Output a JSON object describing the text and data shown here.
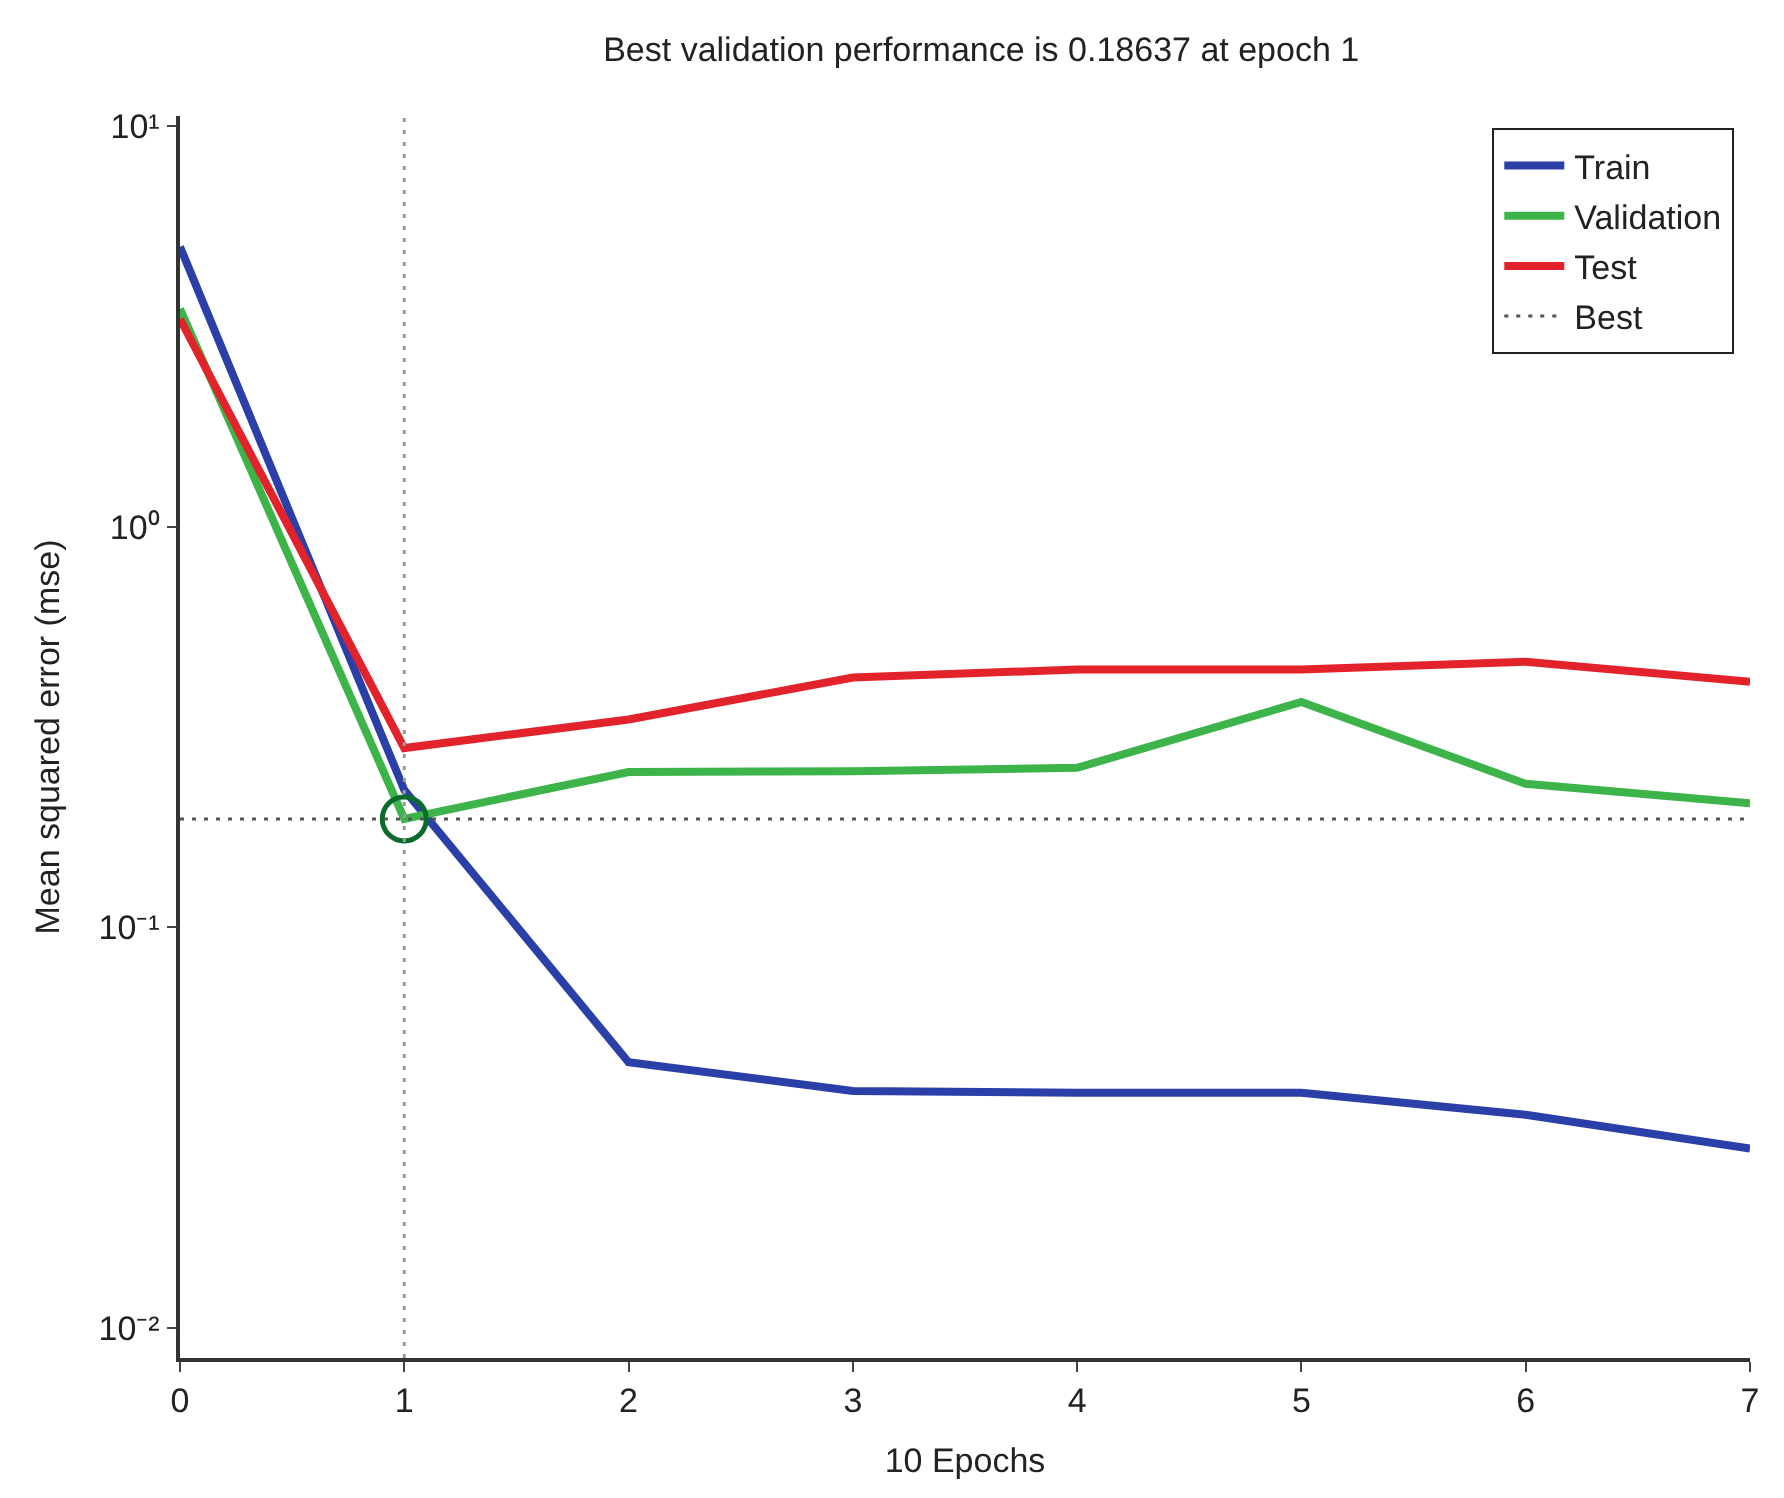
{
  "chart_data": {
    "type": "line",
    "title": "Best validation performance is 0.18637 at epoch 1",
    "xlabel": "10 Epochs",
    "ylabel": "Mean squared error (mse)",
    "x": [
      0,
      1,
      2,
      3,
      4,
      5,
      6,
      7
    ],
    "series": [
      {
        "name": "Train",
        "color": "#2b3fa8",
        "values": [
          5.0,
          0.22,
          0.046,
          0.039,
          0.0386,
          0.0386,
          0.034,
          0.028
        ]
      },
      {
        "name": "Validation",
        "color": "#3cb44a",
        "values": [
          3.5,
          0.18637,
          0.244,
          0.245,
          0.25,
          0.365,
          0.228,
          0.204
        ]
      },
      {
        "name": "Test",
        "color": "#e3232b",
        "values": [
          3.3,
          0.28,
          0.33,
          0.42,
          0.44,
          0.44,
          0.46,
          0.41
        ]
      },
      {
        "type": "scatter",
        "color": "#0a6b2a",
        "marker": "circle",
        "x": [
          1
        ],
        "values": [
          0.18637
        ]
      }
    ],
    "log": "y",
    "xlim": [
      0,
      7
    ],
    "xticks": [
      0,
      1,
      2,
      3,
      4,
      5,
      6,
      7
    ],
    "ylim": [
      0.0084,
      10.6
    ],
    "yticks": [
      {
        "value": 0.01,
        "label": "10⁻²"
      },
      {
        "value": 0.1,
        "label": "10⁻¹"
      },
      {
        "value": 1,
        "label": "10⁰"
      },
      {
        "value": 10,
        "label": "10¹"
      }
    ],
    "ref_lines": [
      {
        "axis": "y",
        "value": 0.18637,
        "label": "Best",
        "color": "#555555",
        "line_style": "dotted"
      },
      {
        "axis": "x",
        "value": 1,
        "color": "#999999",
        "line_style": "dotted"
      }
    ],
    "legend": "top right",
    "marker": "none",
    "line_style": "solid"
  }
}
